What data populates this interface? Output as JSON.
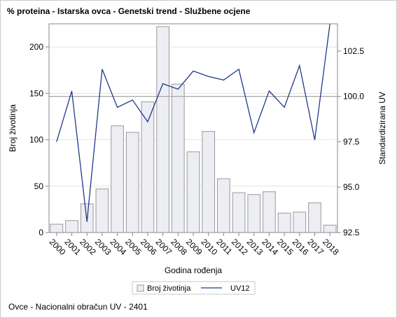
{
  "title": "% proteina - Istarska ovca - Genetski trend - Službene ocjene",
  "footnote": "Ovce - Nacionalni obračun UV - 2401",
  "colors": {
    "bar_fill": "#eceef3",
    "bar_stroke": "#9a9a9a",
    "line": "#1f3a8a",
    "grid": "#e3e3e3",
    "ref_line": "#a8a8a8",
    "axis": "#888888"
  },
  "chart_data": {
    "type": "bar",
    "categories": [
      "2000",
      "2001",
      "2002",
      "2003",
      "2004",
      "2005",
      "2006",
      "2007",
      "2008",
      "2009",
      "2010",
      "2011",
      "2012",
      "2013",
      "2014",
      "2015",
      "2016",
      "2017",
      "2018"
    ],
    "xlabel": "Godina rođenja",
    "ylabel": "Broj životinja",
    "y2label": "Standardizirana UV",
    "ylim": [
      0,
      225
    ],
    "yticks": [
      0,
      50,
      100,
      150,
      200
    ],
    "y2lim": [
      92.5,
      104.0
    ],
    "y2ticks": [
      92.5,
      95.0,
      97.5,
      100.0,
      102.5
    ],
    "y2ticklabels": [
      "92.5",
      "95.0",
      "97.5",
      "100.0",
      "102.5"
    ],
    "reference_line_y2": 100.0,
    "grid": true,
    "legend_position": "bottom",
    "series": [
      {
        "name": "Broj životinja",
        "type": "bar",
        "axis": "left",
        "values": [
          9,
          13,
          31,
          47,
          115,
          108,
          141,
          222,
          160,
          87,
          109,
          58,
          43,
          41,
          44,
          21,
          22,
          32,
          8
        ]
      },
      {
        "name": "UV12",
        "type": "line",
        "axis": "right",
        "values": [
          97.5,
          100.3,
          93.1,
          101.5,
          99.4,
          99.8,
          98.6,
          100.7,
          100.4,
          101.4,
          101.1,
          100.9,
          101.5,
          98.0,
          100.3,
          99.4,
          101.7,
          97.6,
          104.0
        ]
      }
    ]
  }
}
